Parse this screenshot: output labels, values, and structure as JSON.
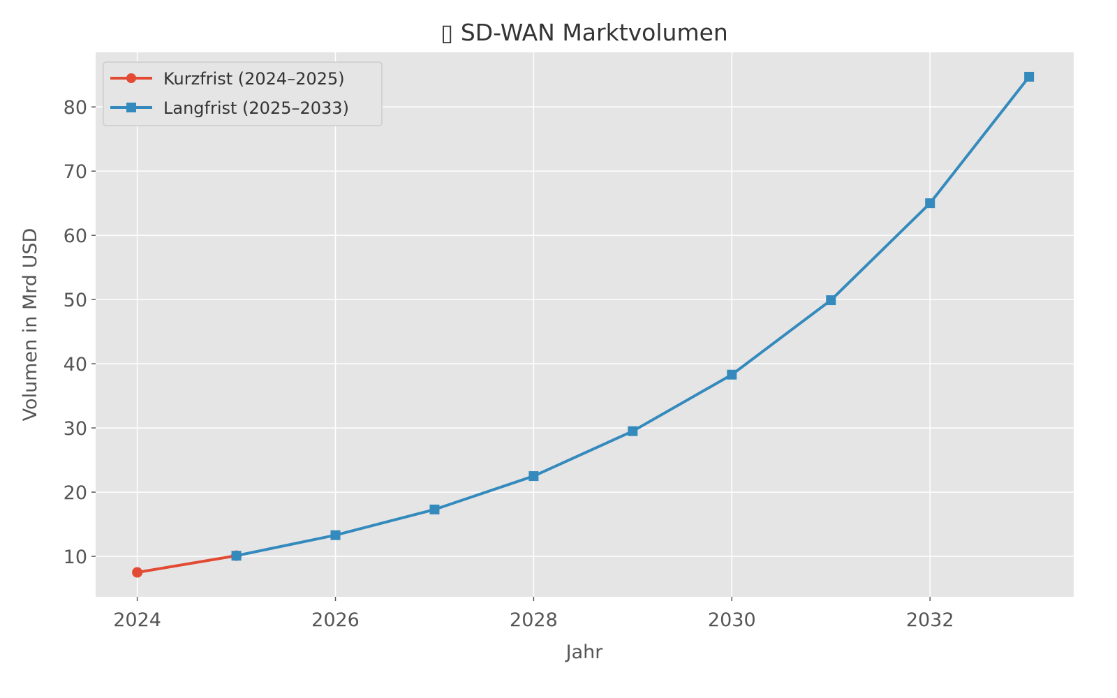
{
  "chart_data": {
    "type": "line",
    "title": "▯ SD-WAN Marktvolumen",
    "xlabel": "Jahr",
    "ylabel": "Volumen in Mrd USD",
    "xlim": [
      2023.58,
      2033.45
    ],
    "ylim": [
      3.7,
      88.5
    ],
    "xticks": [
      2024,
      2026,
      2028,
      2030,
      2032
    ],
    "yticks": [
      10,
      20,
      30,
      40,
      50,
      60,
      70,
      80
    ],
    "grid": true,
    "legend_position": "top-left",
    "series": [
      {
        "name": "Kurzfrist (2024–2025)",
        "color": "#E24A33",
        "marker": "circle",
        "x": [
          2024,
          2025
        ],
        "y": [
          7.5,
          10.1
        ]
      },
      {
        "name": "Langfrist (2025–2033)",
        "color": "#348ABD",
        "marker": "square",
        "x": [
          2025,
          2026,
          2027,
          2028,
          2029,
          2030,
          2031,
          2032,
          2033
        ],
        "y": [
          10.1,
          13.3,
          17.3,
          22.5,
          29.5,
          38.3,
          49.9,
          65.0,
          84.7
        ]
      }
    ]
  }
}
